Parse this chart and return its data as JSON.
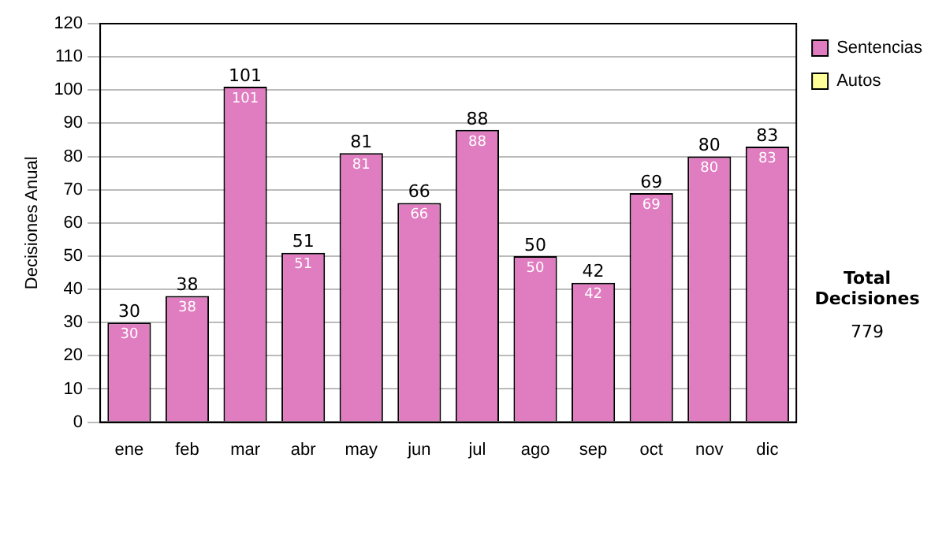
{
  "chart_data": {
    "type": "bar",
    "ylabel": "Decisiones Anual",
    "categories": [
      "ene",
      "feb",
      "mar",
      "abr",
      "may",
      "jun",
      "jul",
      "ago",
      "sep",
      "oct",
      "nov",
      "dic"
    ],
    "series": [
      {
        "name": "Sentencias",
        "color": "#e07cc0",
        "values": [
          30,
          38,
          101,
          51,
          81,
          66,
          88,
          50,
          42,
          69,
          80,
          83
        ],
        "value_labels": [
          "30",
          "38",
          "101",
          "51",
          "81",
          "66",
          "88",
          "50",
          "42",
          "69",
          "80",
          "83"
        ]
      },
      {
        "name": "Autos",
        "color": "#ffff99",
        "values": [
          0,
          0,
          0,
          0,
          0,
          0,
          0,
          0,
          0,
          0,
          0,
          0
        ]
      }
    ],
    "stacked": true,
    "totals": [
      "30",
      "38",
      "101",
      "51",
      "81",
      "66",
      "88",
      "50",
      "42",
      "69",
      "80",
      "83"
    ],
    "ylim": [
      0,
      120
    ],
    "yticks": [
      0,
      10,
      20,
      30,
      40,
      50,
      60,
      70,
      80,
      90,
      100,
      110,
      120
    ],
    "grid": "y",
    "legend": "right",
    "annotations": [
      "Total Decisiones",
      "779"
    ]
  }
}
